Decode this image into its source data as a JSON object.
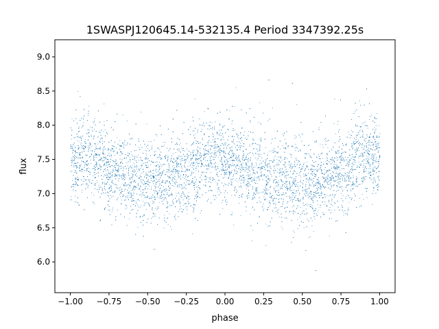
{
  "chart_data": {
    "type": "scatter",
    "title": "1SWASPJ120645.14-532135.4 Period 3347392.25s",
    "xlabel": "phase",
    "ylabel": "flux",
    "xlim": [
      -1.1,
      1.1
    ],
    "ylim": [
      5.55,
      9.25
    ],
    "x_ticks": [
      -1.0,
      -0.75,
      -0.5,
      -0.25,
      0.0,
      0.25,
      0.5,
      0.75,
      1.0
    ],
    "x_tick_labels": [
      "−1.00",
      "−0.75",
      "−0.50",
      "−0.25",
      "0.00",
      "0.25",
      "0.50",
      "0.75",
      "1.00"
    ],
    "y_ticks": [
      6.0,
      6.5,
      7.0,
      7.5,
      8.0,
      8.5,
      9.0
    ],
    "y_tick_labels": [
      "6.0",
      "6.5",
      "7.0",
      "7.5",
      "8.0",
      "8.5",
      "9.0"
    ],
    "grid": false,
    "legend": "none",
    "marker_color": "#1f77b4",
    "series": [
      {
        "phase_profile": {
          "x": [
            -1.0,
            -0.9,
            -0.8,
            -0.75,
            -0.65,
            -0.5,
            -0.45,
            -0.35,
            -0.25,
            -0.15,
            -0.05,
            0.0,
            0.1,
            0.2,
            0.25,
            0.35,
            0.45,
            0.5,
            0.55,
            0.65,
            0.75,
            0.8,
            0.9,
            1.0
          ],
          "y": [
            7.5,
            7.55,
            7.45,
            7.35,
            7.3,
            7.2,
            7.15,
            7.25,
            7.3,
            7.45,
            7.55,
            7.5,
            7.4,
            7.3,
            7.25,
            7.2,
            7.15,
            7.2,
            7.15,
            7.25,
            7.3,
            7.4,
            7.55,
            7.5
          ]
        },
        "scatter_sigma": 0.3,
        "point_count": 9000
      }
    ]
  }
}
